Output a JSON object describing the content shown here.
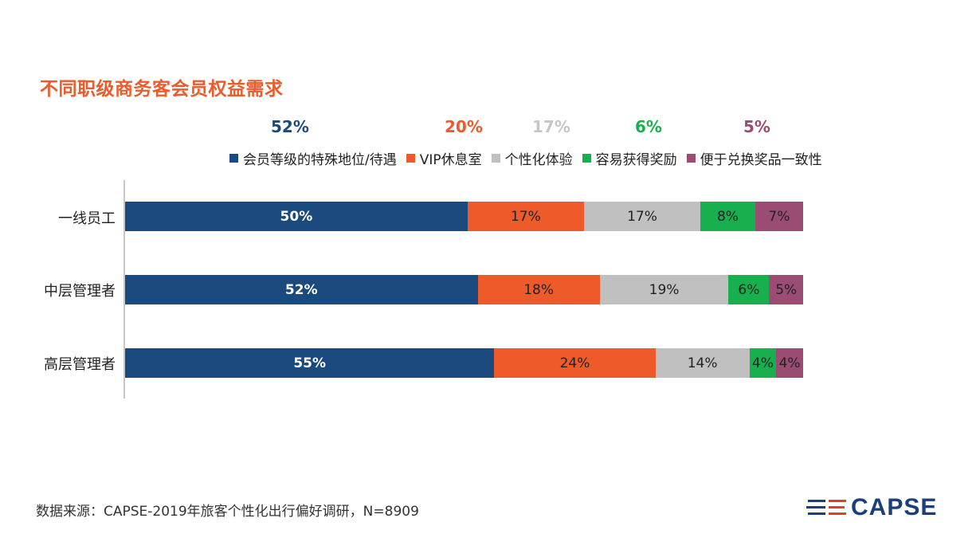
{
  "chart_data": {
    "type": "bar",
    "stacked": true,
    "orientation": "horizontal",
    "title": "不同职级商务客会员权益需求",
    "categories": [
      "一线员工",
      "中层管理者",
      "高层管理者"
    ],
    "series": [
      {
        "name": "会员等级的特殊地位/待遇",
        "color": "#1b4a7e",
        "total_label": "52%",
        "values": [
          50,
          52,
          55
        ],
        "labels": [
          "50%",
          "52%",
          "55%"
        ]
      },
      {
        "name": "VIP休息室",
        "color": "#ef5a2a",
        "total_label": "20%",
        "values": [
          17,
          18,
          24
        ],
        "labels": [
          "17%",
          "18%",
          "24%"
        ]
      },
      {
        "name": "个性化体验",
        "color": "#c0c0c0",
        "total_label": "17%",
        "values": [
          17,
          19,
          14
        ],
        "labels": [
          "17%",
          "19%",
          "14%"
        ]
      },
      {
        "name": "容易获得奖励",
        "color": "#18b04e",
        "total_label": "6%",
        "values": [
          8,
          6,
          4
        ],
        "labels": [
          "8%",
          "6%",
          "4%"
        ]
      },
      {
        "name": "便于兑换奖品一致性",
        "color": "#9a4c73",
        "total_label": "5%",
        "values": [
          7,
          5,
          4
        ],
        "labels": [
          "7%",
          "5%",
          "4%"
        ]
      }
    ],
    "total_label_colors": [
      "#1b4a7e",
      "#ef5a2a",
      "#c6c6c6",
      "#18b04e",
      "#9a4c73"
    ],
    "grid": false,
    "legend": "top"
  },
  "footer": {
    "source": "数据来源：CAPSE-2019年旅客个性化出行偏好调研，N=8909"
  },
  "logo": {
    "text": "CAPSE",
    "icon": "capse-stripes-icon"
  },
  "colors": {
    "title": "#ec5b2a",
    "brand": "#1c3f7a"
  }
}
